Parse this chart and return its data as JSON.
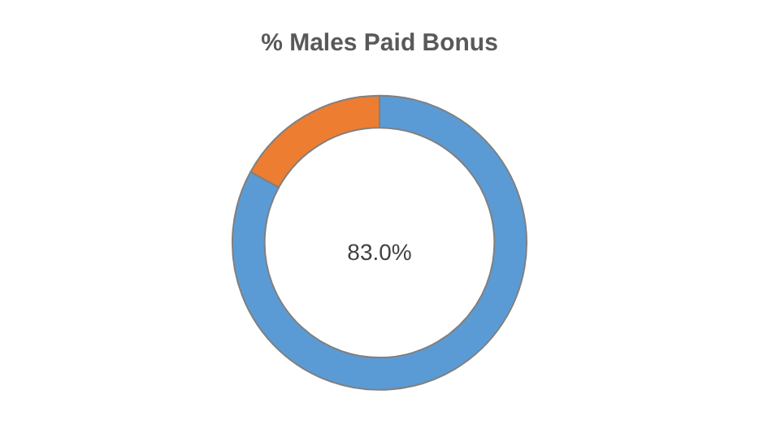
{
  "chart_data": {
    "type": "donut",
    "title": "% Males Paid Bonus",
    "categories": [
      null,
      null
    ],
    "values": [
      83,
      17
    ],
    "colors": [
      "#5b9bd5",
      "#ed7d31"
    ],
    "annotations": [
      "83.0%"
    ]
  }
}
